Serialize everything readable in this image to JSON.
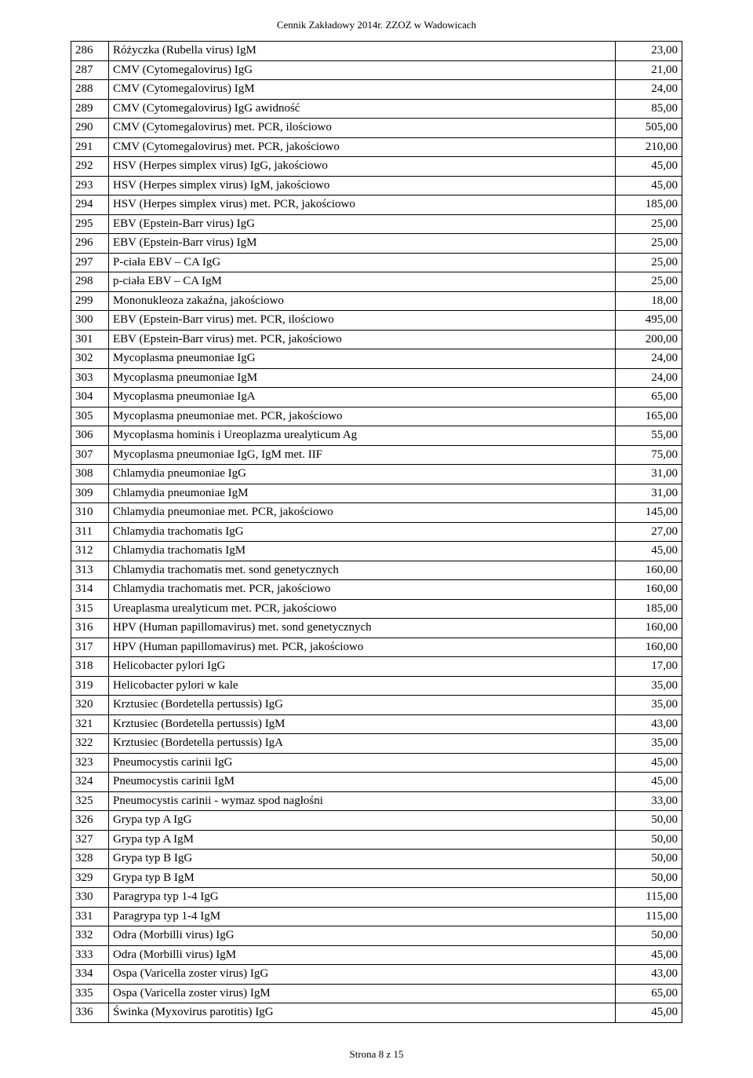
{
  "header": "Cennik Zakładowy 2014r. ZZOZ w Wadowicach",
  "footer": "Strona 8 z 15",
  "rows": [
    {
      "n": "286",
      "name": "Różyczka (Rubella virus) IgM",
      "price": "23,00"
    },
    {
      "n": "287",
      "name": "CMV (Cytomegalovirus) IgG",
      "price": "21,00"
    },
    {
      "n": "288",
      "name": "CMV (Cytomegalovirus) IgM",
      "price": "24,00"
    },
    {
      "n": "289",
      "name": "CMV (Cytomegalovirus) IgG awidność",
      "price": "85,00"
    },
    {
      "n": "290",
      "name": "CMV (Cytomegalovirus) met. PCR, ilościowo",
      "price": "505,00"
    },
    {
      "n": "291",
      "name": "CMV (Cytomegalovirus) met. PCR, jakościowo",
      "price": "210,00"
    },
    {
      "n": "292",
      "name": "HSV (Herpes simplex virus) IgG, jakościowo",
      "price": "45,00"
    },
    {
      "n": "293",
      "name": "HSV (Herpes simplex virus) IgM, jakościowo",
      "price": "45,00"
    },
    {
      "n": "294",
      "name": "HSV (Herpes simplex virus) met. PCR, jakościowo",
      "price": "185,00"
    },
    {
      "n": "295",
      "name": "EBV (Epstein-Barr virus) IgG",
      "price": "25,00"
    },
    {
      "n": "296",
      "name": "EBV (Epstein-Barr virus) IgM",
      "price": "25,00"
    },
    {
      "n": "297",
      "name": "P-ciała EBV – CA IgG",
      "price": "25,00"
    },
    {
      "n": "298",
      "name": "p-ciała EBV – CA IgM",
      "price": "25,00"
    },
    {
      "n": "299",
      "name": "Mononukleoza zakaźna, jakościowo",
      "price": "18,00"
    },
    {
      "n": "300",
      "name": "EBV (Epstein-Barr virus) met. PCR, ilościowo",
      "price": "495,00"
    },
    {
      "n": "301",
      "name": "EBV (Epstein-Barr virus) met. PCR, jakościowo",
      "price": "200,00"
    },
    {
      "n": "302",
      "name": "Mycoplasma pneumoniae IgG",
      "price": "24,00"
    },
    {
      "n": "303",
      "name": "Mycoplasma pneumoniae IgM",
      "price": "24,00"
    },
    {
      "n": "304",
      "name": "Mycoplasma pneumoniae IgA",
      "price": "65,00"
    },
    {
      "n": "305",
      "name": "Mycoplasma pneumoniae met. PCR, jakościowo",
      "price": "165,00"
    },
    {
      "n": "306",
      "name": "Mycoplasma hominis i Ureoplazma urealyticum Ag",
      "price": "55,00"
    },
    {
      "n": "307",
      "name": "Mycoplasma pneumoniae IgG, IgM met. IIF",
      "price": "75,00"
    },
    {
      "n": "308",
      "name": "Chlamydia pneumoniae IgG",
      "price": "31,00"
    },
    {
      "n": "309",
      "name": "Chlamydia pneumoniae IgM",
      "price": "31,00"
    },
    {
      "n": "310",
      "name": "Chlamydia pneumoniae met. PCR, jakościowo",
      "price": "145,00"
    },
    {
      "n": "311",
      "name": "Chlamydia trachomatis IgG",
      "price": "27,00"
    },
    {
      "n": "312",
      "name": "Chlamydia trachomatis IgM",
      "price": "45,00"
    },
    {
      "n": "313",
      "name": "Chlamydia trachomatis met. sond genetycznych",
      "price": "160,00"
    },
    {
      "n": "314",
      "name": "Chlamydia trachomatis met. PCR, jakościowo",
      "price": "160,00"
    },
    {
      "n": "315",
      "name": "Ureaplasma urealyticum met. PCR, jakościowo",
      "price": "185,00"
    },
    {
      "n": "316",
      "name": "HPV (Human papillomavirus) met. sond genetycznych",
      "price": "160,00"
    },
    {
      "n": "317",
      "name": "HPV (Human papillomavirus) met. PCR, jakościowo",
      "price": "160,00"
    },
    {
      "n": "318",
      "name": "Helicobacter pylori IgG",
      "price": "17,00"
    },
    {
      "n": "319",
      "name": "Helicobacter pylori w kale",
      "price": "35,00"
    },
    {
      "n": "320",
      "name": "Krztusiec (Bordetella pertussis) IgG",
      "price": "35,00"
    },
    {
      "n": "321",
      "name": "Krztusiec (Bordetella pertussis) IgM",
      "price": "43,00"
    },
    {
      "n": "322",
      "name": "Krztusiec (Bordetella pertussis) IgA",
      "price": "35,00"
    },
    {
      "n": "323",
      "name": "Pneumocystis carinii IgG",
      "price": "45,00"
    },
    {
      "n": "324",
      "name": "Pneumocystis carinii IgM",
      "price": "45,00"
    },
    {
      "n": "325",
      "name": "Pneumocystis carinii - wymaz spod nagłośni",
      "price": "33,00"
    },
    {
      "n": "326",
      "name": "Grypa typ A IgG",
      "price": "50,00"
    },
    {
      "n": "327",
      "name": "Grypa typ A IgM",
      "price": "50,00"
    },
    {
      "n": "328",
      "name": "Grypa typ B IgG",
      "price": "50,00"
    },
    {
      "n": "329",
      "name": "Grypa typ B IgM",
      "price": "50,00"
    },
    {
      "n": "330",
      "name": "Paragrypa typ 1-4 IgG",
      "price": "115,00"
    },
    {
      "n": "331",
      "name": "Paragrypa typ 1-4 IgM",
      "price": "115,00"
    },
    {
      "n": "332",
      "name": "Odra (Morbilli virus) IgG",
      "price": "50,00"
    },
    {
      "n": "333",
      "name": "Odra (Morbilli virus) IgM",
      "price": "45,00"
    },
    {
      "n": "334",
      "name": "Ospa (Varicella zoster virus) IgG",
      "price": "43,00"
    },
    {
      "n": "335",
      "name": "Ospa (Varicella zoster virus) IgM",
      "price": "65,00"
    },
    {
      "n": "336",
      "name": "Świnka (Myxovirus parotitis) IgG",
      "price": "45,00"
    }
  ]
}
